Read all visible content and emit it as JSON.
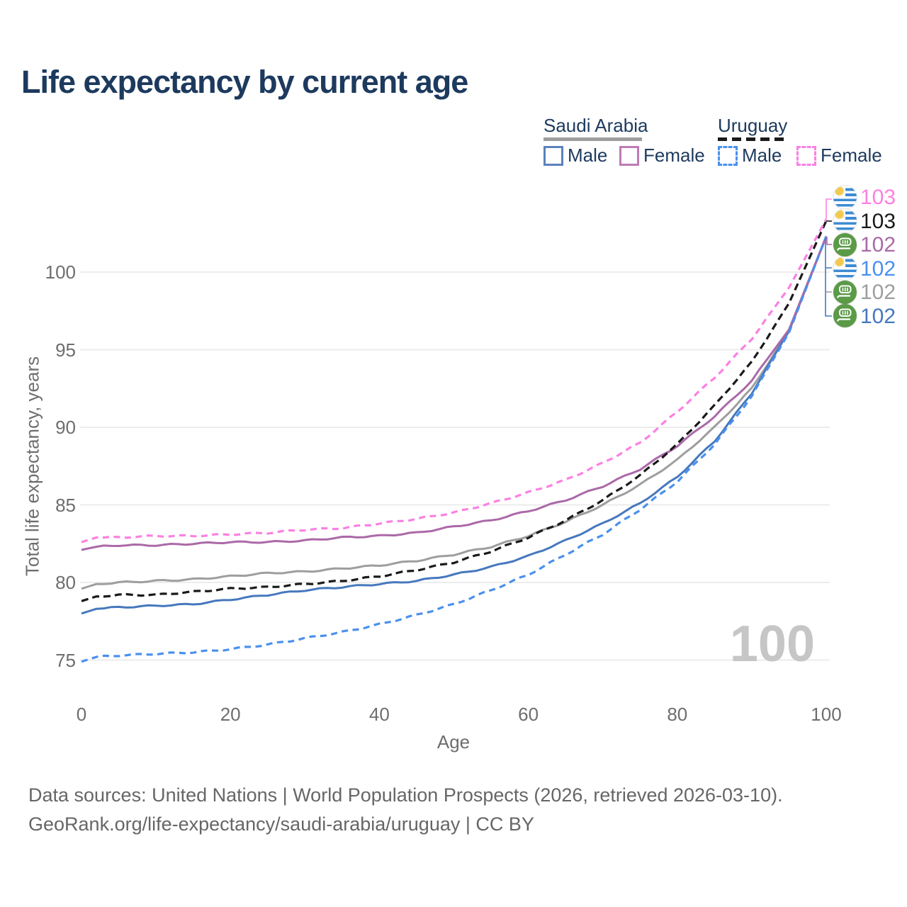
{
  "title": "Life expectancy by current age",
  "legend": {
    "saudi": {
      "header": "Saudi Arabia",
      "male_label": "Male",
      "female_label": "Female"
    },
    "uruguay": {
      "header": "Uruguay",
      "male_label": "Male",
      "female_label": "Female"
    }
  },
  "axes": {
    "y_label": "Total life expectancy, years",
    "x_label": "Age",
    "y_ticks": [
      100,
      95,
      90,
      85,
      80,
      75
    ],
    "x_ticks": [
      0,
      20,
      40,
      60,
      80,
      100
    ]
  },
  "end_labels": [
    {
      "flag": "uruguay",
      "value": "103",
      "color": "#fb80e2",
      "series": "Uruguay Female"
    },
    {
      "flag": "uruguay",
      "value": "103",
      "color": "#1a1a1a",
      "series": "Uruguay Total"
    },
    {
      "flag": "saudi",
      "value": "102",
      "color": "#ab69a8",
      "series": "Saudi Arabia Female"
    },
    {
      "flag": "uruguay",
      "value": "102",
      "color": "#4a90ee",
      "series": "Uruguay Male"
    },
    {
      "flag": "saudi",
      "value": "102",
      "color": "#9e9e9e",
      "series": "Saudi Arabia Total"
    },
    {
      "flag": "saudi",
      "value": "102",
      "color": "#4678bd",
      "series": "Saudi Arabia Male"
    }
  ],
  "watermark": "100",
  "footer": {
    "line1": "Data sources: United Nations | World Population Prospects (2026, retrieved 2026-03-10).",
    "line2": "GeoRank.org/life-expectancy/saudi-arabia/uruguay | CC BY"
  },
  "colors": {
    "title_text": "#1d3a5e",
    "axis_text": "#6e6e6e",
    "gridline": "#ececec",
    "saudi_male": "#4678bd",
    "saudi_female": "#ab69a8",
    "saudi_total": "#9e9e9e",
    "uruguay_male": "#4a90ee",
    "uruguay_female": "#fb80e2",
    "uruguay_total": "#1a1a1a",
    "watermark": "#c6c6c6"
  },
  "chart_data": {
    "type": "line",
    "title": "Life expectancy by current age",
    "xlabel": "Age",
    "ylabel": "Total life expectancy, years",
    "xlim": [
      0,
      100
    ],
    "ylim": [
      73.5,
      104.5
    ],
    "grid": "horizontal",
    "legend_position": "top-right",
    "x": [
      0,
      2,
      5,
      10,
      15,
      20,
      25,
      30,
      35,
      40,
      45,
      50,
      55,
      60,
      65,
      70,
      75,
      80,
      85,
      90,
      95,
      100
    ],
    "series": [
      {
        "name": "Saudi Arabia Total",
        "country": "Saudi Arabia",
        "sex": "both",
        "style": "solid",
        "color": "#9e9e9e",
        "end_label": 102,
        "values": [
          79.6,
          79.9,
          80.0,
          80.1,
          80.2,
          80.4,
          80.6,
          80.7,
          80.9,
          81.1,
          81.4,
          81.8,
          82.3,
          83.0,
          83.9,
          85.0,
          86.3,
          87.9,
          90.0,
          92.5,
          96.2,
          102.3
        ]
      },
      {
        "name": "Saudi Arabia Male",
        "country": "Saudi Arabia",
        "sex": "male",
        "style": "solid",
        "color": "#4678bd",
        "end_label": 102,
        "values": [
          78.0,
          78.3,
          78.4,
          78.5,
          78.6,
          78.9,
          79.2,
          79.5,
          79.7,
          79.9,
          80.1,
          80.5,
          81.0,
          81.7,
          82.7,
          83.8,
          85.1,
          86.8,
          89.1,
          92.2,
          96.2,
          102.3
        ]
      },
      {
        "name": "Saudi Arabia Female",
        "country": "Saudi Arabia",
        "sex": "female",
        "style": "solid",
        "color": "#ab69a8",
        "end_label": 102,
        "values": [
          82.1,
          82.3,
          82.4,
          82.4,
          82.5,
          82.6,
          82.6,
          82.7,
          82.9,
          83.0,
          83.2,
          83.6,
          84.0,
          84.6,
          85.3,
          86.2,
          87.3,
          88.8,
          90.7,
          93.0,
          96.3,
          102.3
        ]
      },
      {
        "name": "Uruguay Total",
        "country": "Uruguay",
        "sex": "both",
        "style": "dashed",
        "color": "#1a1a1a",
        "end_label": 103,
        "values": [
          78.8,
          79.1,
          79.2,
          79.2,
          79.4,
          79.6,
          79.7,
          79.9,
          80.1,
          80.4,
          80.8,
          81.3,
          82.0,
          82.9,
          84.0,
          85.3,
          86.9,
          88.9,
          91.4,
          94.2,
          98.0,
          103.3
        ]
      },
      {
        "name": "Uruguay Female",
        "country": "Uruguay",
        "sex": "female",
        "style": "dashed",
        "color": "#fb80e2",
        "end_label": 103,
        "values": [
          82.6,
          82.9,
          82.9,
          83.0,
          83.0,
          83.1,
          83.2,
          83.4,
          83.5,
          83.8,
          84.1,
          84.5,
          85.1,
          85.8,
          86.6,
          87.7,
          89.0,
          91.0,
          93.2,
          95.7,
          99.0,
          103.4
        ]
      },
      {
        "name": "Uruguay Male",
        "country": "Uruguay",
        "sex": "male",
        "style": "dashed",
        "color": "#4a90ee",
        "end_label": 102,
        "values": [
          74.9,
          75.2,
          75.3,
          75.4,
          75.5,
          75.7,
          76.0,
          76.4,
          76.8,
          77.3,
          77.9,
          78.6,
          79.5,
          80.5,
          81.8,
          83.1,
          84.7,
          86.5,
          88.9,
          92.0,
          96.1,
          102.3
        ]
      }
    ]
  }
}
